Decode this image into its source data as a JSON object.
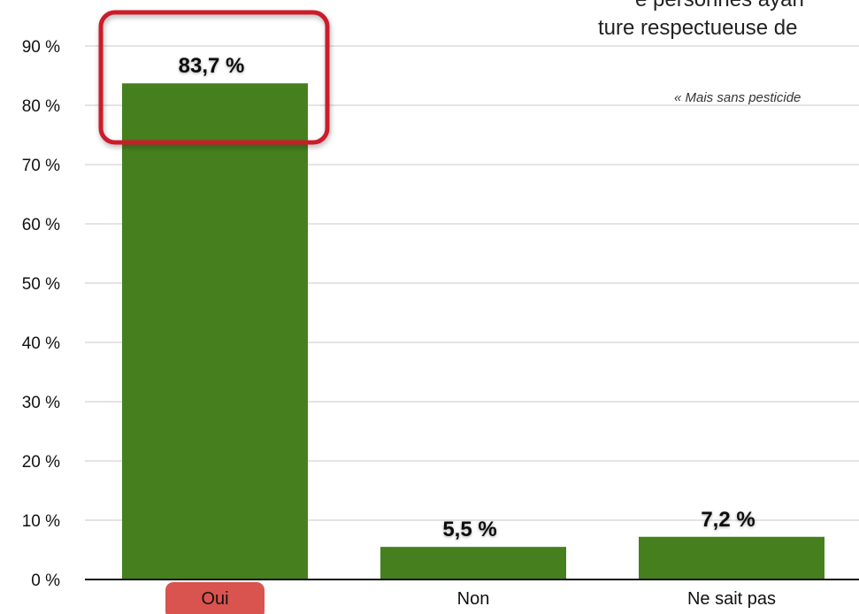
{
  "chart_data": {
    "type": "bar",
    "title_lines": [
      "e personnes ayan",
      "ture respectueuse de"
    ],
    "subtitle": "« Mais sans pesticide",
    "categories": [
      "Oui",
      "Non",
      "Ne sait pas"
    ],
    "values": [
      83.7,
      5.5,
      7.2
    ],
    "data_labels": [
      "83,7 %",
      "5,5 %",
      "7,2 %"
    ],
    "y_ticks": [
      "0 %",
      "10 %",
      "20 %",
      "30 %",
      "40 %",
      "50 %",
      "60 %",
      "70 %",
      "80 %",
      "90 %"
    ],
    "ylim": [
      0,
      90
    ],
    "grid": true,
    "highlighted_category": "Oui",
    "colors": {
      "bar": "#46801e",
      "highlight_border": "#cc1f2a",
      "highlight_tab": "#d9534f",
      "grid": "#c8c8c8",
      "axis": "#111111"
    }
  }
}
